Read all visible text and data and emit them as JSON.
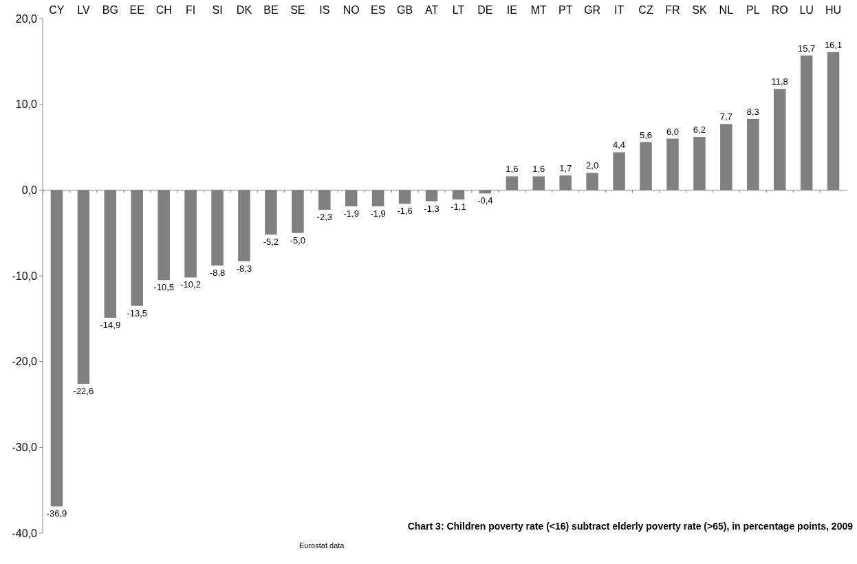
{
  "chart_data": {
    "type": "bar",
    "title": "Chart 3: Children poverty rate (<16) subtract elderly poverty rate (>65), in percentage points, 2009",
    "annotations": [
      "Eurostat data"
    ],
    "categories": [
      "CY",
      "LV",
      "BG",
      "EE",
      "CH",
      "FI",
      "SI",
      "DK",
      "BE",
      "SE",
      "IS",
      "NO",
      "ES",
      "GB",
      "AT",
      "LT",
      "DE",
      "IE",
      "MT",
      "PT",
      "GR",
      "IT",
      "CZ",
      "FR",
      "SK",
      "NL",
      "PL",
      "RO",
      "LU",
      "HU"
    ],
    "values": [
      -36.9,
      -22.6,
      -14.9,
      -13.5,
      -10.5,
      -10.2,
      -8.8,
      -8.3,
      -5.2,
      -5.0,
      -2.3,
      -1.9,
      -1.9,
      -1.6,
      -1.3,
      -1.1,
      -0.4,
      1.6,
      1.6,
      1.7,
      2.0,
      4.4,
      5.6,
      6.0,
      6.2,
      7.7,
      8.3,
      11.8,
      15.7,
      16.1
    ],
    "value_labels": [
      "-36,9",
      "-22,6",
      "-14,9",
      "-13,5",
      "-10,5",
      "-10,2",
      "-8,8",
      "-8,3",
      "-5,2",
      "-5,0",
      "-2,3",
      "-1,9",
      "-1,9",
      "-1,6",
      "-1,3",
      "-1,1",
      "-0,4",
      "1,6",
      "1,6",
      "1,7",
      "2,0",
      "4,4",
      "5,6",
      "6,0",
      "6,2",
      "7,7",
      "8,3",
      "11,8",
      "15,7",
      "16,1"
    ],
    "color": "#808080",
    "ylim": [
      -40,
      20
    ],
    "yticks": [
      {
        "value": -40,
        "label": "-40,0"
      },
      {
        "value": -30,
        "label": "-30,0"
      },
      {
        "value": -20,
        "label": "-20,0"
      },
      {
        "value": -10,
        "label": "-10,0"
      },
      {
        "value": 0,
        "label": "0,0"
      },
      {
        "value": 10,
        "label": "10,0"
      },
      {
        "value": 20,
        "label": "20,0"
      }
    ]
  }
}
